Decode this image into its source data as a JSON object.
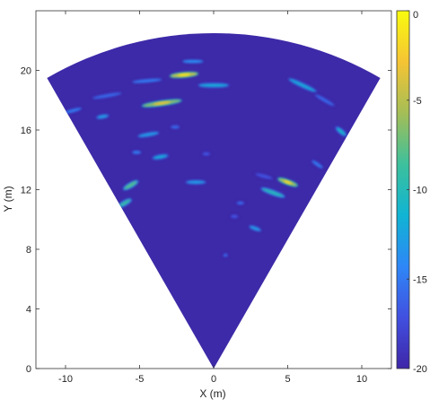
{
  "chart_data": {
    "type": "heatmap",
    "title": "",
    "xlabel": "X (m)",
    "ylabel": "Y (m)",
    "xlim": [
      -12,
      12
    ],
    "ylim": [
      0,
      24
    ],
    "xticks": [
      -10,
      -5,
      0,
      5,
      10
    ],
    "xtick_labels": [
      "-10",
      "-5",
      "0",
      "5",
      "10"
    ],
    "yticks": [
      0,
      4,
      8,
      12,
      16,
      20
    ],
    "ytick_labels": [
      "0",
      "4",
      "8",
      "12",
      "16",
      "20"
    ],
    "grid": false,
    "sector": {
      "origin": [
        0,
        0
      ],
      "radius": 22.5,
      "half_angle_deg": 30,
      "fill_color": "#3d2aa8"
    },
    "colorbar": {
      "min": -20,
      "max": 0,
      "ticks": [
        0,
        -5,
        -10,
        -15,
        -20
      ],
      "tick_labels": [
        "0",
        "-5",
        "-10",
        "-15",
        "-20"
      ],
      "colormap": [
        "#3e26a8",
        "#4150e0",
        "#2e87f7",
        "#10b4d3",
        "#3dc09c",
        "#a5be56",
        "#f5c434",
        "#f9fb0e"
      ]
    },
    "targets": [
      {
        "x": -2.0,
        "y": 19.7,
        "length": 1.8,
        "angle": 5,
        "value": -4
      },
      {
        "x": -1.4,
        "y": 20.6,
        "length": 1.4,
        "angle": 0,
        "value": -14
      },
      {
        "x": 0.0,
        "y": 19.0,
        "length": 2.0,
        "angle": 0,
        "value": -12
      },
      {
        "x": -4.5,
        "y": 19.3,
        "length": 2.0,
        "angle": 5,
        "value": -15
      },
      {
        "x": -3.5,
        "y": 17.8,
        "length": 2.6,
        "angle": 8,
        "value": -6
      },
      {
        "x": -7.2,
        "y": 18.3,
        "length": 2.0,
        "angle": 10,
        "value": -16
      },
      {
        "x": -9.5,
        "y": 17.3,
        "length": 1.2,
        "angle": 15,
        "value": -15
      },
      {
        "x": -7.5,
        "y": 16.9,
        "length": 0.8,
        "angle": 10,
        "value": -13
      },
      {
        "x": -4.4,
        "y": 15.7,
        "length": 1.4,
        "angle": 10,
        "value": -13
      },
      {
        "x": -5.2,
        "y": 14.5,
        "length": 0.6,
        "angle": 0,
        "value": -15
      },
      {
        "x": -3.6,
        "y": 14.2,
        "length": 1.0,
        "angle": 10,
        "value": -12
      },
      {
        "x": -5.6,
        "y": 12.3,
        "length": 1.0,
        "angle": 30,
        "value": -8
      },
      {
        "x": -6.0,
        "y": 11.1,
        "length": 0.9,
        "angle": 30,
        "value": -9
      },
      {
        "x": -1.2,
        "y": 12.5,
        "length": 1.3,
        "angle": 0,
        "value": -13
      },
      {
        "x": 5.0,
        "y": 12.5,
        "length": 1.3,
        "angle": -20,
        "value": -5
      },
      {
        "x": 4.0,
        "y": 11.8,
        "length": 1.6,
        "angle": -20,
        "value": -10
      },
      {
        "x": 3.4,
        "y": 12.9,
        "length": 1.2,
        "angle": -15,
        "value": -17
      },
      {
        "x": 1.8,
        "y": 11.1,
        "length": 0.5,
        "angle": 0,
        "value": -16
      },
      {
        "x": 2.8,
        "y": 9.4,
        "length": 0.8,
        "angle": -20,
        "value": -13
      },
      {
        "x": 1.4,
        "y": 10.2,
        "length": 0.5,
        "angle": 0,
        "value": -17
      },
      {
        "x": 0.8,
        "y": 7.6,
        "length": 0.3,
        "angle": 0,
        "value": -16
      },
      {
        "x": 6.0,
        "y": 19.0,
        "length": 2.0,
        "angle": -25,
        "value": -12
      },
      {
        "x": 7.5,
        "y": 18.0,
        "length": 1.5,
        "angle": -30,
        "value": -16
      },
      {
        "x": 8.6,
        "y": 15.9,
        "length": 0.8,
        "angle": -40,
        "value": -11
      },
      {
        "x": 7.0,
        "y": 13.7,
        "length": 0.9,
        "angle": -35,
        "value": -15
      },
      {
        "x": -2.6,
        "y": 16.2,
        "length": 0.6,
        "angle": 0,
        "value": -16
      },
      {
        "x": -0.5,
        "y": 14.4,
        "length": 0.5,
        "angle": 0,
        "value": -17
      }
    ]
  }
}
